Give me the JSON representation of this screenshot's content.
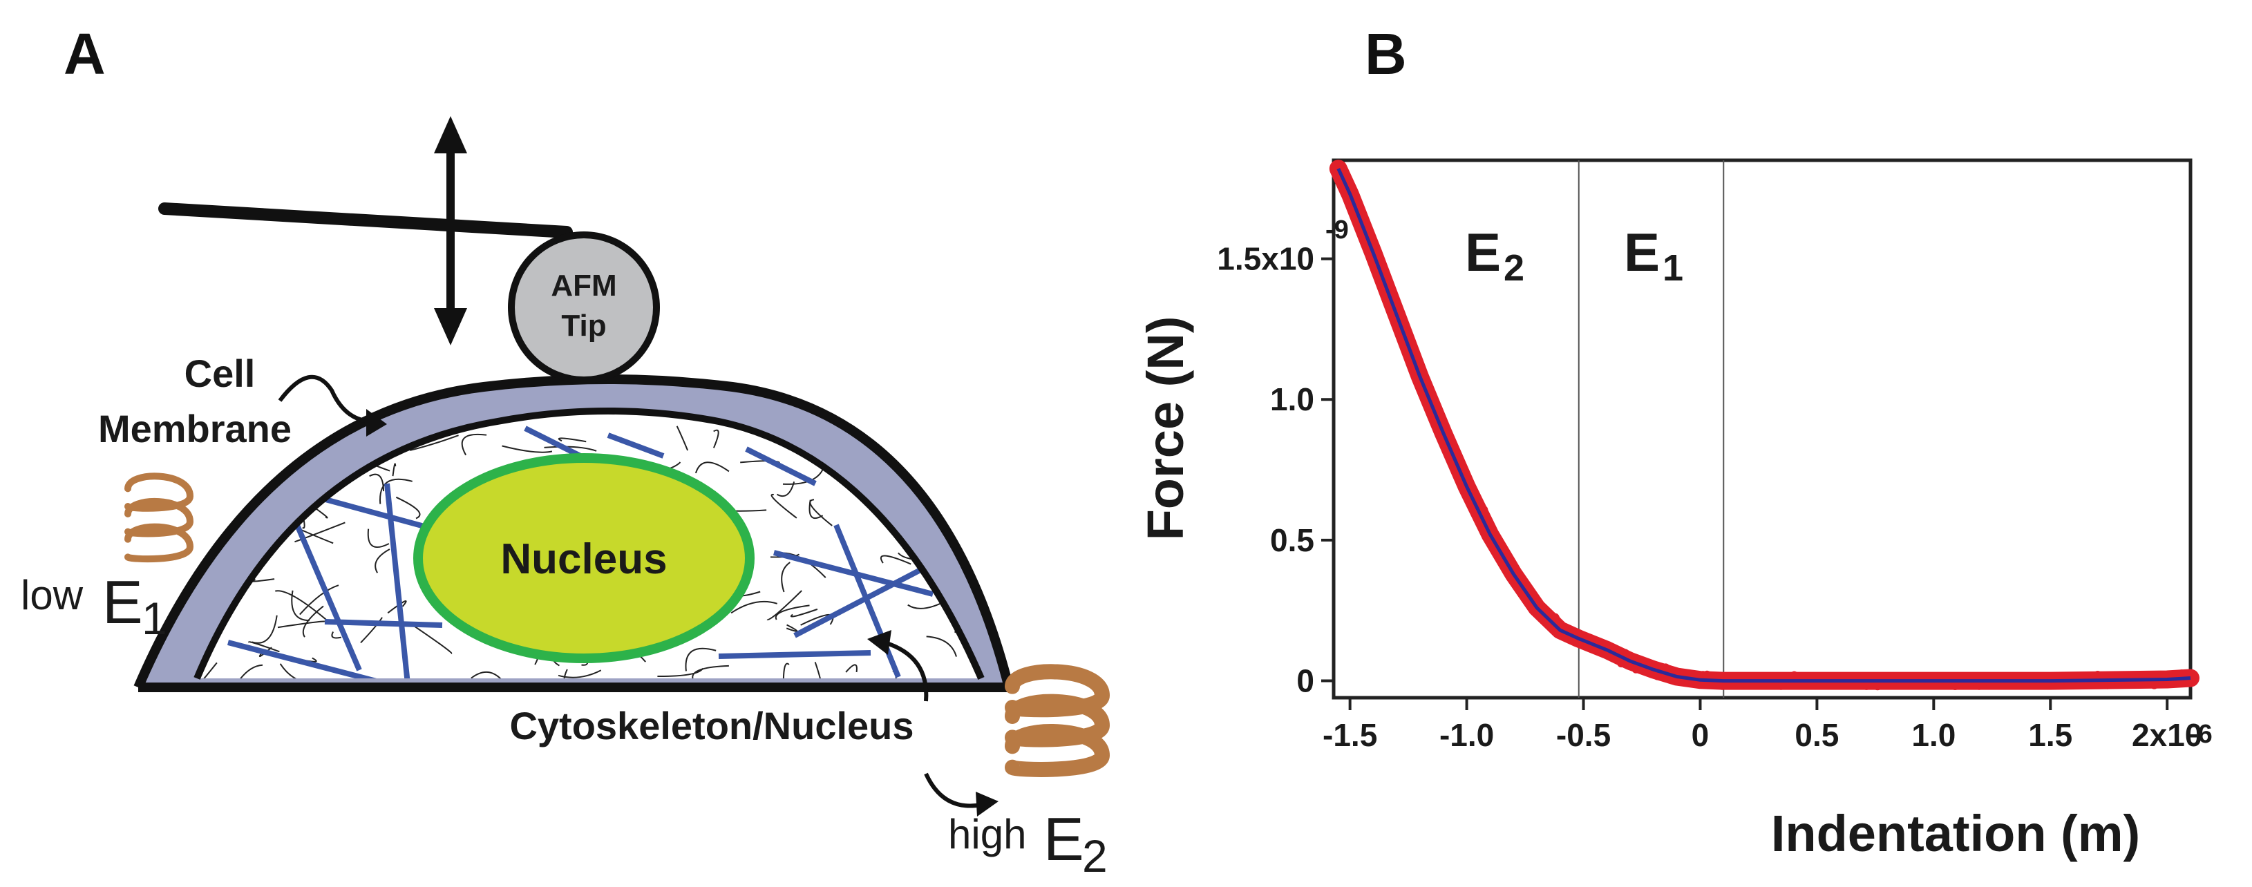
{
  "panel_a": {
    "letter": "A",
    "afm_tip_line1": "AFM",
    "afm_tip_line2": "Tip",
    "cell_line1": "Cell",
    "cell_line2": "Membrane",
    "nucleus": "Nucleus",
    "cytoskeleton": "Cytoskeleton/Nucleus",
    "low_prefix": "low",
    "low_symbol": "E",
    "low_sub": "1",
    "high_prefix": "high",
    "high_symbol": "E",
    "high_sub": "2",
    "colors": {
      "membrane": "#9ea3c4",
      "nucleus_fill": "#c7d92b",
      "nucleus_ring": "#2db24a",
      "filaments": "#3a57a8",
      "tip": "#bfc0c2",
      "spring": "#b87a44"
    }
  },
  "panel_b": {
    "letter": "B",
    "region_e2": "E",
    "region_e2_sub": "2",
    "region_e1": "E",
    "region_e1_sub": "1",
    "ylabel": "Force (N)",
    "xlabel": "Indentation (m)",
    "y_exponent": "-9",
    "x_exponent": "-6",
    "colors": {
      "data": "#e0202a",
      "fit": "#2a2a9a"
    }
  },
  "chart_data": {
    "type": "line",
    "xlabel": "Indentation (m)",
    "ylabel": "Force (N)",
    "xlim": [
      -1.57e-06,
      2.1e-06
    ],
    "ylim": [
      -6e-11,
      1.85e-09
    ],
    "x_ticks": [
      -1.5e-06,
      -1e-06,
      -5e-07,
      0,
      5e-07,
      1e-06,
      1.5e-06,
      2e-06
    ],
    "x_tick_labels": [
      "-1.5",
      "-1.0",
      "-0.5",
      "0",
      "0.5",
      "1.0",
      "1.5",
      "2x10"
    ],
    "y_ticks": [
      0,
      5e-10,
      1e-09,
      1.5e-09
    ],
    "y_tick_labels": [
      "0",
      "0.5",
      "1.0",
      "1.5x10"
    ],
    "region_boundaries": [
      -5.2e-07,
      1e-07
    ],
    "series": [
      {
        "x": [
          -1.55e-06,
          -1.5e-06,
          -1.4e-06,
          -1.3e-06,
          -1.2e-06,
          -1.1e-06,
          -1e-06,
          -9e-07,
          -8e-07,
          -7e-07,
          -6e-07,
          -5.2e-07,
          -4e-07,
          -3e-07,
          -2e-07,
          -1e-07,
          0,
          1e-07,
          5e-07,
          1e-06,
          1.5e-06,
          2e-06,
          2.1e-06
        ],
        "y": [
          1.82e-09,
          1.73e-09,
          1.52e-09,
          1.3e-09,
          1.08e-09,
          8.8e-10,
          6.9e-10,
          5.2e-10,
          3.8e-10,
          2.6e-10,
          1.8e-10,
          1.5e-10,
          1.1e-10,
          7e-11,
          4e-11,
          1.5e-11,
          3e-12,
          0,
          0,
          0,
          0,
          5e-12,
          1e-11
        ]
      }
    ]
  }
}
